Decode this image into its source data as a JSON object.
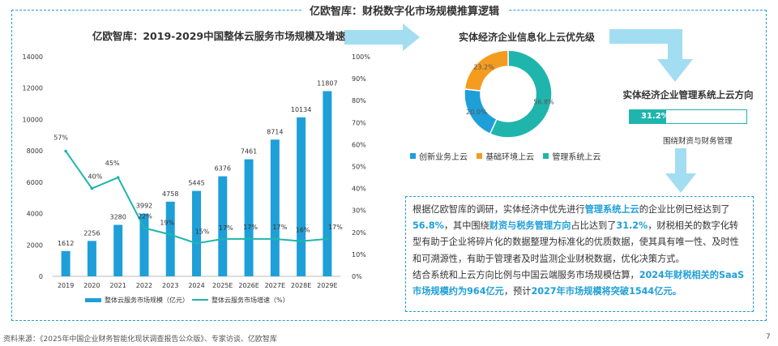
{
  "frame_title": "亿欧智库：财税数字化市场规模推算逻辑",
  "colors": {
    "bar": "#1e9fd8",
    "line": "#1fb5ad",
    "orange": "#f39c1f",
    "arrow": "#a3ddf2",
    "frame": "#1f9fcf"
  },
  "chart_data": [
    {
      "type": "bar",
      "title": "亿欧智库：2019-2029中国整体云服务市场规模及增速",
      "categories": [
        "2019",
        "2020",
        "2021",
        "2022",
        "2023",
        "2024",
        "2025E",
        "2026E",
        "2027E",
        "2028E",
        "2029E"
      ],
      "series": [
        {
          "name": "整体云服务市场规模（亿元）",
          "type": "bar",
          "axis": "left",
          "values": [
            1612,
            2256,
            3280,
            3992,
            4758,
            5445,
            6376,
            7461,
            8714,
            10134,
            11807
          ],
          "labels": [
            "1612",
            "2256",
            "3280",
            "3992",
            "4758",
            "5445",
            "6376",
            "7461",
            "8714",
            "10134",
            "11807"
          ]
        },
        {
          "name": "整体云服务市场增速（%）",
          "type": "line",
          "axis": "right",
          "values": [
            57,
            40,
            45,
            22,
            19,
            15,
            17,
            17,
            17,
            16,
            17
          ],
          "labels": [
            "57%",
            "40%",
            "45%",
            "22%",
            "19%",
            "15%",
            "17%",
            "17%",
            "17%",
            "16%",
            "17%"
          ]
        }
      ],
      "ylim": [
        0,
        14000
      ],
      "yticks": [
        "0",
        "2000",
        "4000",
        "6000",
        "8000",
        "10000",
        "12000",
        "14000"
      ],
      "y2lim": [
        0,
        100
      ],
      "y2ticks": [
        "0%",
        "10%",
        "20%",
        "30%",
        "40%",
        "50%",
        "60%",
        "70%",
        "80%",
        "90%",
        "100%"
      ],
      "legend_position": "bottom"
    },
    {
      "type": "pie",
      "title": "实体经济企业信息化上云优先级",
      "categories": [
        "创新业务上云",
        "基础环境上云",
        "管理系统上云"
      ],
      "values": [
        20.0,
        23.2,
        56.8
      ],
      "labels": [
        "20.0%",
        "23.2%",
        "56.8%"
      ],
      "colors": [
        "#1e9fd8",
        "#f39c1f",
        "#1fb5ad"
      ],
      "legend_position": "bottom"
    },
    {
      "type": "bar",
      "title": "实体经济企业管理系统上云方向",
      "values": [
        31.2
      ],
      "labels": [
        "31.2%"
      ],
      "xlim": [
        0,
        100
      ],
      "caption": "围绕财资与财务管理"
    }
  ],
  "text_box": {
    "para1": [
      {
        "text": "根据亿欧智库的调研，实体经济中优先进行"
      },
      {
        "text": "管理系统上云",
        "hl": true
      },
      {
        "text": "的企业比例已经达到了"
      },
      {
        "text": "56.8%",
        "hl": true
      },
      {
        "text": "，其中围绕"
      },
      {
        "text": "财资与税务管理方向",
        "hl": true
      },
      {
        "text": "占比达到了"
      },
      {
        "text": "31.2%",
        "hl": true
      },
      {
        "text": "，财税相关的数字化转型有助于企业将碎片化的数据整理为标准化的优质数据，使其具有唯一性、及时性和可溯源性，有助于管理者及时监测企业财税数据，优化决策方式。"
      }
    ],
    "para2": [
      {
        "text": "结合系统和上云方向比例与中国云端服务市场规模估算，"
      },
      {
        "text": "2024年财税相关的SaaS市场规模约为964亿元",
        "hl": true
      },
      {
        "text": "，预计"
      },
      {
        "text": "2027年市场规模将突破1544亿元。",
        "hl": true
      }
    ]
  },
  "footer": "资料来源：《2025年中国企业财务智能化现状调查报告公众版》、专家访谈、亿欧智库",
  "page_number": "7"
}
